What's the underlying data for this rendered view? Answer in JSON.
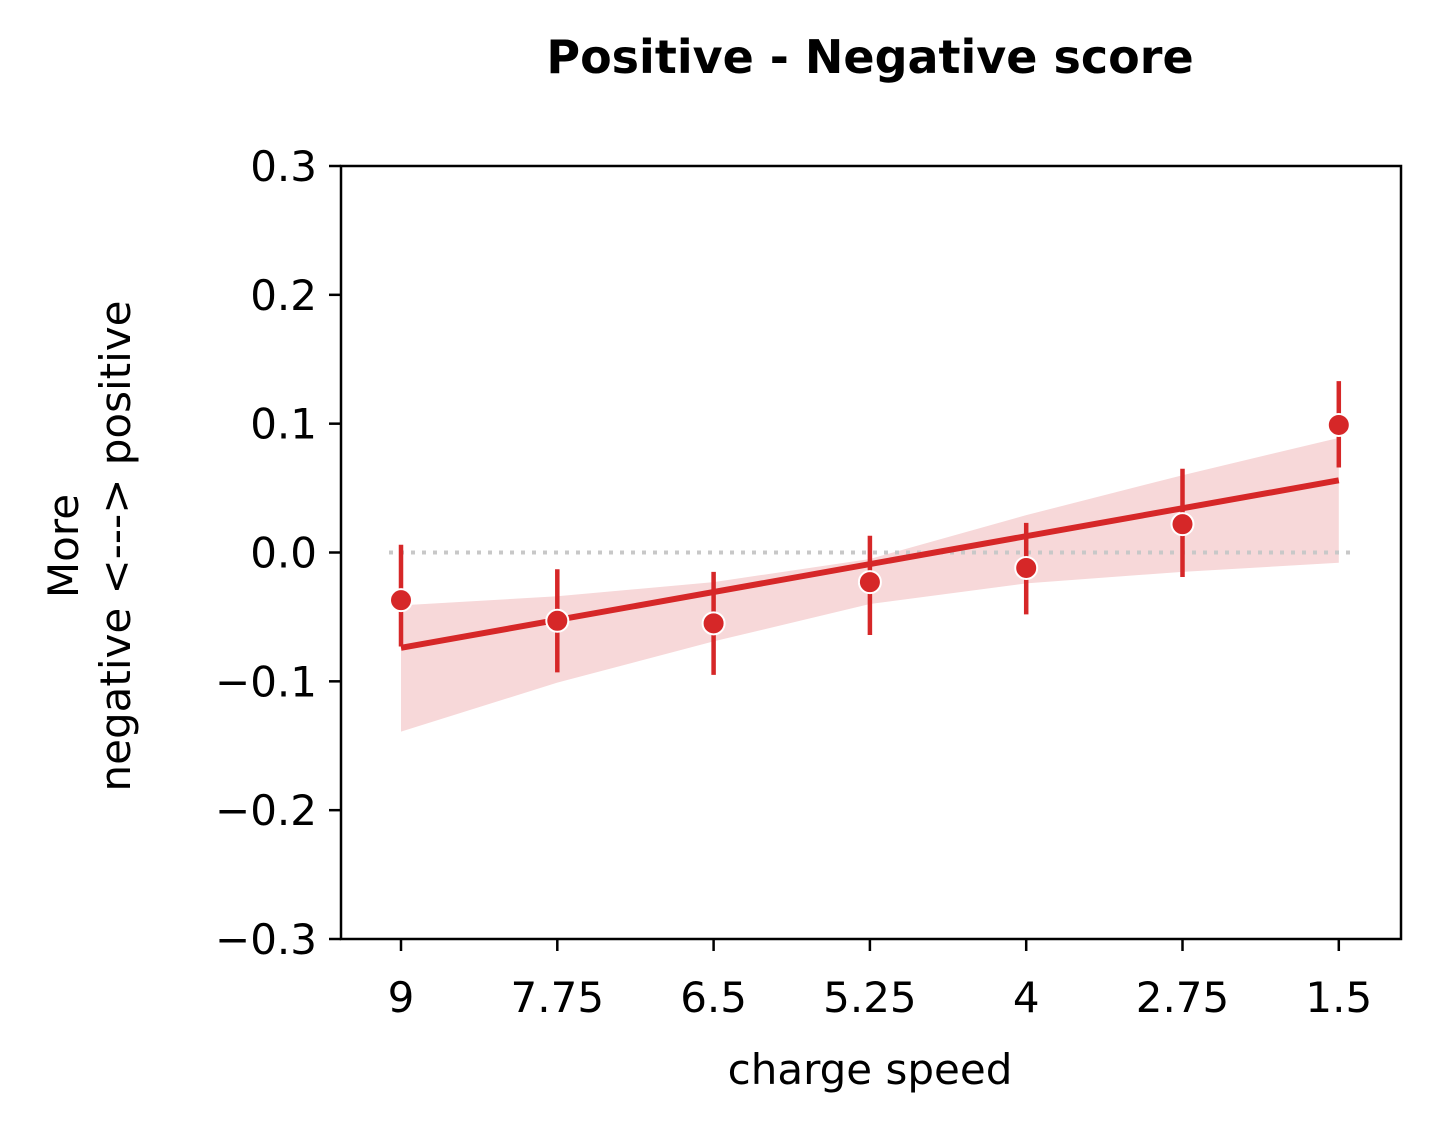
{
  "chart_data": {
    "type": "scatter",
    "title": "Positive - Negative score",
    "xlabel": "charge speed",
    "ylabel_lines": [
      "More",
      "negative <---> positive"
    ],
    "categories": [
      "9",
      "7.75",
      "6.5",
      "5.25",
      "4",
      "2.75",
      "1.5"
    ],
    "ylim": [
      -0.3,
      0.3
    ],
    "yticks": [
      -0.3,
      -0.2,
      -0.1,
      0.0,
      0.1,
      0.2,
      0.3
    ],
    "ytick_labels": [
      "−0.3",
      "−0.2",
      "−0.1",
      "0.0",
      "0.1",
      "0.2",
      "0.3"
    ],
    "series": [
      {
        "values": [
          -0.037,
          -0.053,
          -0.055,
          -0.023,
          -0.012,
          0.022,
          0.099
        ],
        "err_low": [
          -0.073,
          -0.093,
          -0.095,
          -0.064,
          -0.048,
          -0.019,
          0.066
        ],
        "err_high": [
          0.006,
          -0.013,
          -0.015,
          0.013,
          0.023,
          0.065,
          0.133
        ],
        "color": "#d62728"
      }
    ],
    "fit": {
      "start": -0.074,
      "end": 0.056,
      "band_low": [
        -0.139,
        -0.101,
        -0.069,
        -0.04,
        -0.024,
        -0.015,
        -0.008
      ],
      "band_high": [
        -0.041,
        -0.034,
        -0.023,
        -0.005,
        0.029,
        0.06,
        0.089
      ],
      "color": "#d62728",
      "band_color": "#f7d8d9"
    },
    "reference_line": {
      "y": 0.0,
      "color": "#c8c8c8"
    },
    "grid": false,
    "legend": "none"
  }
}
